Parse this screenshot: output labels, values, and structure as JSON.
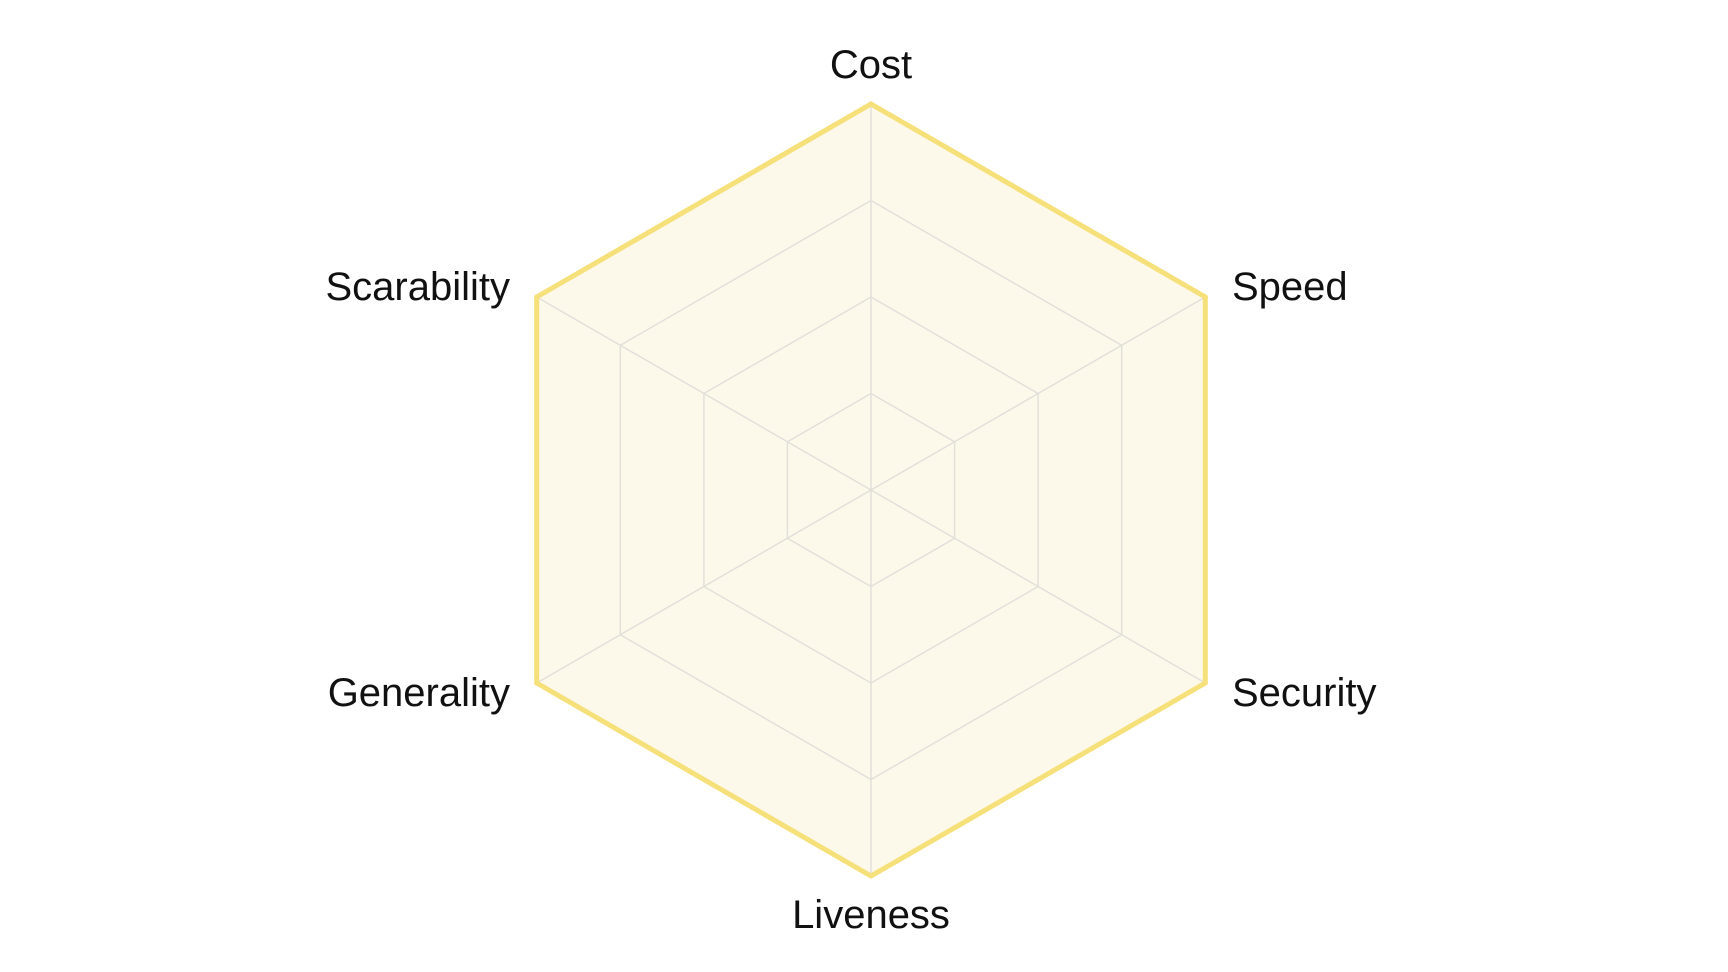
{
  "chart_data": {
    "type": "radar",
    "axes": [
      "Cost",
      "Speed",
      "Security",
      "Liveness",
      "Generality",
      "Scarability"
    ],
    "series": [
      {
        "values": [
          4,
          4,
          4,
          4,
          4,
          4
        ]
      }
    ],
    "range": [
      0,
      4
    ],
    "grid_levels": 4,
    "grid": true,
    "legend": "none"
  },
  "colors": {
    "series_stroke": "#F5E07A",
    "series_fill": "#FDF9EA",
    "grid": "#E2E0DA",
    "label": "#111111"
  }
}
